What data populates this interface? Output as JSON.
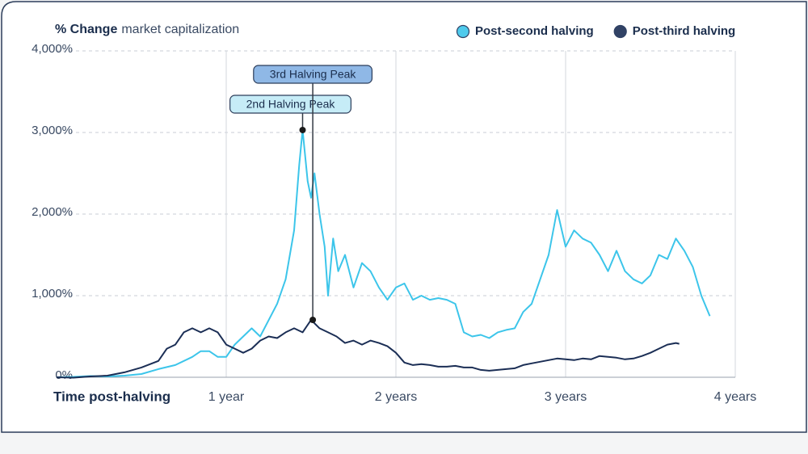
{
  "chart_data": {
    "type": "line",
    "title": {
      "bold": "% Change",
      "rest": "market capitalization"
    },
    "x_label": "Time post-halving",
    "xlim": [
      0,
      4
    ],
    "xticks": [
      {
        "value": 1,
        "label": "1 year"
      },
      {
        "value": 2,
        "label": "2 years"
      },
      {
        "value": 3,
        "label": "3 years"
      },
      {
        "value": 4,
        "label": "4 years"
      }
    ],
    "ylim": [
      0,
      4000
    ],
    "yticks": [
      {
        "value": 0,
        "label": "0%"
      },
      {
        "value": 1000,
        "label": "1,000%"
      },
      {
        "value": 2000,
        "label": "2,000%"
      },
      {
        "value": 3000,
        "label": "3,000%"
      },
      {
        "value": 4000,
        "label": "4,000%"
      }
    ],
    "grid": true,
    "legend": "top-right",
    "series": [
      {
        "name": "Post-second halving",
        "color": "#3cc5ea",
        "x": [
          0,
          0.1,
          0.2,
          0.3,
          0.4,
          0.5,
          0.6,
          0.7,
          0.8,
          0.85,
          0.9,
          0.95,
          1.0,
          1.05,
          1.1,
          1.15,
          1.2,
          1.25,
          1.3,
          1.35,
          1.4,
          1.43,
          1.45,
          1.48,
          1.5,
          1.52,
          1.55,
          1.58,
          1.6,
          1.63,
          1.66,
          1.7,
          1.75,
          1.8,
          1.85,
          1.9,
          1.95,
          2.0,
          2.05,
          2.1,
          2.15,
          2.2,
          2.25,
          2.3,
          2.35,
          2.4,
          2.45,
          2.5,
          2.55,
          2.6,
          2.65,
          2.7,
          2.75,
          2.8,
          2.85,
          2.9,
          2.95,
          3.0,
          3.05,
          3.1,
          3.15,
          3.2,
          3.25,
          3.3,
          3.35,
          3.4,
          3.45,
          3.5,
          3.55,
          3.6,
          3.65,
          3.7,
          3.75,
          3.8,
          3.85
        ],
        "values": [
          0,
          5,
          15,
          10,
          20,
          40,
          100,
          150,
          250,
          320,
          320,
          250,
          250,
          400,
          500,
          600,
          500,
          700,
          900,
          1200,
          1800,
          2600,
          3030,
          2400,
          2200,
          2500,
          2000,
          1600,
          1000,
          1700,
          1300,
          1500,
          1100,
          1400,
          1300,
          1100,
          950,
          1100,
          1150,
          950,
          1000,
          950,
          970,
          950,
          900,
          550,
          500,
          520,
          480,
          550,
          580,
          600,
          800,
          900,
          1200,
          1500,
          2050,
          1600,
          1800,
          1700,
          1650,
          1500,
          1300,
          1550,
          1300,
          1200,
          1150,
          1250,
          1500,
          1450,
          1700,
          1550,
          1350,
          1000,
          750
        ]
      },
      {
        "name": "Post-third halving",
        "color": "#1b2e55",
        "x": [
          0,
          0.1,
          0.2,
          0.3,
          0.4,
          0.5,
          0.6,
          0.65,
          0.7,
          0.75,
          0.8,
          0.85,
          0.9,
          0.95,
          1.0,
          1.05,
          1.1,
          1.15,
          1.2,
          1.25,
          1.3,
          1.35,
          1.4,
          1.45,
          1.5,
          1.55,
          1.6,
          1.65,
          1.7,
          1.75,
          1.8,
          1.85,
          1.9,
          1.95,
          2.0,
          2.05,
          2.1,
          2.15,
          2.2,
          2.25,
          2.3,
          2.35,
          2.4,
          2.45,
          2.5,
          2.55,
          2.6,
          2.65,
          2.7,
          2.75,
          2.8,
          2.85,
          2.9,
          2.95,
          3.0,
          3.05,
          3.1,
          3.15,
          3.2,
          3.25,
          3.3,
          3.35,
          3.4,
          3.45,
          3.5,
          3.55,
          3.6,
          3.65,
          3.67
        ],
        "values": [
          0,
          -5,
          10,
          20,
          60,
          120,
          200,
          350,
          400,
          550,
          600,
          550,
          600,
          550,
          400,
          350,
          300,
          350,
          450,
          500,
          480,
          550,
          600,
          550,
          703,
          600,
          550,
          500,
          420,
          450,
          400,
          450,
          420,
          380,
          300,
          180,
          150,
          160,
          150,
          130,
          130,
          140,
          120,
          120,
          90,
          80,
          90,
          100,
          110,
          150,
          170,
          190,
          210,
          230,
          220,
          210,
          230,
          220,
          260,
          250,
          240,
          220,
          230,
          260,
          300,
          350,
          400,
          420,
          410
        ]
      }
    ],
    "annotations": [
      {
        "text": "2nd Halving Peak",
        "x": 1.45,
        "y": 3030,
        "color": "#c6ecf7"
      },
      {
        "text": "3rd Halving Peak",
        "x": 1.51,
        "y": 703,
        "color": "#8fb8e6"
      }
    ]
  }
}
